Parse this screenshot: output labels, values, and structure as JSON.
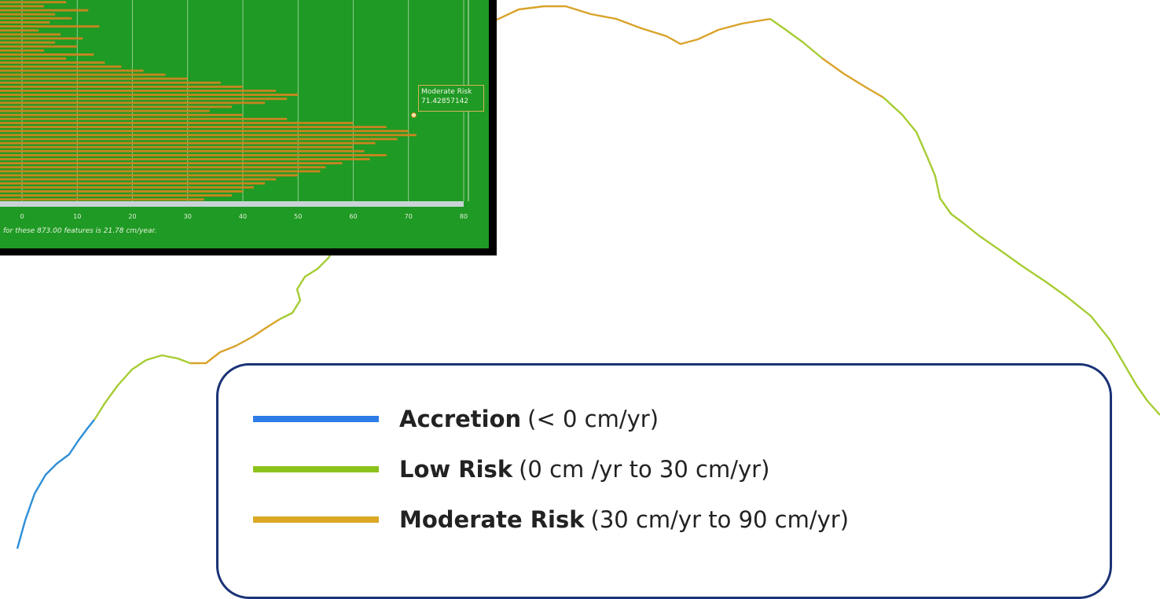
{
  "map": {
    "coast_colors": {
      "accretion": "#2f8fd8",
      "low_risk": "#a6cc34",
      "moderate_risk": "#d9a32a"
    }
  },
  "chart_data": {
    "type": "bar",
    "orientation": "horizontal",
    "title": "",
    "xlabel": "",
    "ylabel": "",
    "xlim": [
      0,
      80
    ],
    "x_ticks": [
      "0",
      "10",
      "20",
      "30",
      "40",
      "50",
      "60",
      "70",
      "80"
    ],
    "grid": true,
    "bar_color": "#c88520",
    "background_color": "#1f9a24",
    "footnote": "for these 873.00 features is 21.78 cm/year.",
    "tooltip": {
      "label": "Moderate Risk",
      "value": "71.42857142"
    },
    "values": [
      8,
      4,
      12,
      6,
      9,
      5,
      14,
      3,
      7,
      11,
      6,
      10,
      4,
      13,
      8,
      15,
      18,
      22,
      26,
      30,
      36,
      40,
      46,
      50,
      48,
      44,
      38,
      34,
      40,
      48,
      60,
      66,
      70,
      71.43,
      68,
      64,
      60,
      62,
      66,
      63,
      58,
      55,
      54,
      50,
      46,
      44,
      42,
      40,
      38,
      33
    ]
  },
  "legend": {
    "items": [
      {
        "name": "Accretion",
        "range": "(< 0 cm/yr)",
        "color": "#2e7ce8"
      },
      {
        "name": "Low Risk",
        "range": "(0 cm /yr to 30 cm/yr)",
        "color": "#8cc21c"
      },
      {
        "name": "Moderate Risk",
        "range": "(30 cm/yr to 90 cm/yr)",
        "color": "#dba826"
      }
    ]
  }
}
